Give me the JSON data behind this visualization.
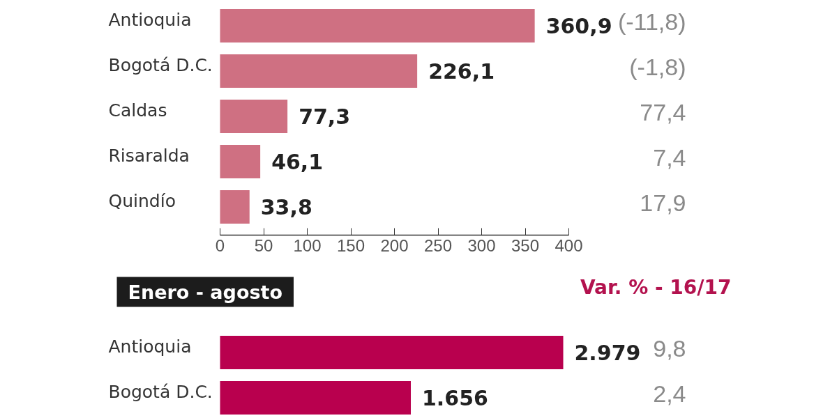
{
  "chart_data": [
    {
      "type": "bar",
      "orientation": "horizontal",
      "categories": [
        "Antioquia",
        "Bogotá D.C.",
        "Caldas",
        "Risaralda",
        "Quindío"
      ],
      "values": [
        360.9,
        226.1,
        77.3,
        46.1,
        33.8
      ],
      "value_labels": [
        "360,9",
        "226,1",
        "77,3",
        "46,1",
        "33,8"
      ],
      "color": "#cf7082",
      "xlim": [
        0,
        400
      ],
      "xticks": [
        0,
        50,
        100,
        150,
        200,
        250,
        300,
        350,
        400
      ],
      "annotations": [
        "(-11,8)",
        "(-1,8)",
        "77,4",
        "7,4",
        "17,9"
      ]
    },
    {
      "type": "bar",
      "orientation": "horizontal",
      "title": "Enero - agosto",
      "categories": [
        "Antioquia",
        "Bogotá D.C."
      ],
      "values": [
        2979,
        1656
      ],
      "value_labels": [
        "2.979",
        "1.656"
      ],
      "color": "#b9004e",
      "tick_labels": "y",
      "annotations": [
        "Var. % - 16/17",
        "9,8",
        "2,4"
      ]
    }
  ]
}
